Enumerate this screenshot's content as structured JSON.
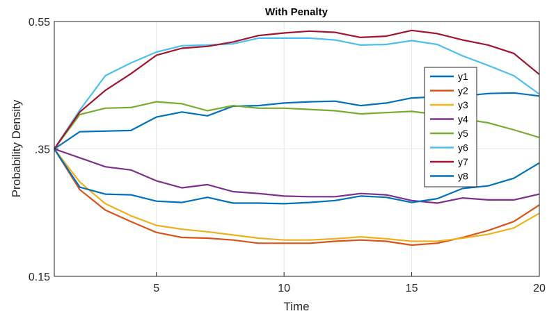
{
  "chart_data": {
    "type": "line",
    "title": "With Penalty",
    "xlabel": "Time",
    "ylabel": "Probability Density",
    "xlim": [
      1,
      20
    ],
    "ylim": [
      0.15,
      0.55
    ],
    "x_ticks": [
      5,
      10,
      15,
      20
    ],
    "x_tick_labels": [
      "5",
      "10",
      "15",
      "20"
    ],
    "y_ticks": [
      0.15,
      0.35,
      0.55
    ],
    "y_tick_labels": [
      "0.15",
      ".35",
      "0.55"
    ],
    "grid": true,
    "legend_position": "right",
    "x": [
      1,
      2,
      3,
      4,
      5,
      6,
      7,
      8,
      9,
      10,
      11,
      12,
      13,
      14,
      15,
      16,
      17,
      18,
      19,
      20
    ],
    "series": [
      {
        "name": "y1",
        "color": "#0072BD",
        "values": [
          0.35,
          0.377,
          0.378,
          0.379,
          0.4,
          0.408,
          0.402,
          0.417,
          0.418,
          0.422,
          0.424,
          0.425,
          0.418,
          0.422,
          0.43,
          0.432,
          0.433,
          0.437,
          0.438,
          0.433
        ]
      },
      {
        "name": "y2",
        "color": "#D95319",
        "values": [
          0.35,
          0.286,
          0.254,
          0.236,
          0.219,
          0.211,
          0.21,
          0.207,
          0.202,
          0.202,
          0.202,
          0.205,
          0.207,
          0.205,
          0.199,
          0.202,
          0.211,
          0.222,
          0.236,
          0.262
        ]
      },
      {
        "name": "y3",
        "color": "#EDB120",
        "values": [
          0.35,
          0.298,
          0.264,
          0.245,
          0.23,
          0.224,
          0.22,
          0.215,
          0.21,
          0.207,
          0.207,
          0.209,
          0.212,
          0.209,
          0.205,
          0.205,
          0.21,
          0.216,
          0.226,
          0.249
        ]
      },
      {
        "name": "y4",
        "color": "#7E2F8E",
        "values": [
          0.35,
          0.336,
          0.322,
          0.317,
          0.3,
          0.289,
          0.294,
          0.283,
          0.28,
          0.276,
          0.275,
          0.275,
          0.28,
          0.278,
          0.269,
          0.265,
          0.273,
          0.27,
          0.27,
          0.279
        ]
      },
      {
        "name": "y5",
        "color": "#77AC30",
        "values": [
          0.35,
          0.404,
          0.414,
          0.415,
          0.424,
          0.421,
          0.41,
          0.418,
          0.414,
          0.414,
          0.412,
          0.41,
          0.405,
          0.407,
          0.409,
          0.404,
          0.397,
          0.391,
          0.38,
          0.368
        ]
      },
      {
        "name": "y6",
        "color": "#4DBEEE",
        "values": [
          0.35,
          0.411,
          0.465,
          0.485,
          0.502,
          0.512,
          0.513,
          0.515,
          0.524,
          0.524,
          0.524,
          0.521,
          0.513,
          0.514,
          0.52,
          0.514,
          0.496,
          0.481,
          0.465,
          0.436
        ]
      },
      {
        "name": "y7",
        "color": "#A2142F",
        "values": [
          0.35,
          0.408,
          0.442,
          0.468,
          0.497,
          0.508,
          0.511,
          0.518,
          0.528,
          0.532,
          0.535,
          0.533,
          0.525,
          0.527,
          0.536,
          0.531,
          0.521,
          0.513,
          0.5,
          0.467
        ]
      },
      {
        "name": "y8",
        "color": "#0072BD",
        "values": [
          0.35,
          0.29,
          0.279,
          0.278,
          0.268,
          0.266,
          0.274,
          0.265,
          0.265,
          0.264,
          0.266,
          0.269,
          0.276,
          0.274,
          0.266,
          0.272,
          0.288,
          0.292,
          0.304,
          0.328
        ]
      }
    ]
  }
}
